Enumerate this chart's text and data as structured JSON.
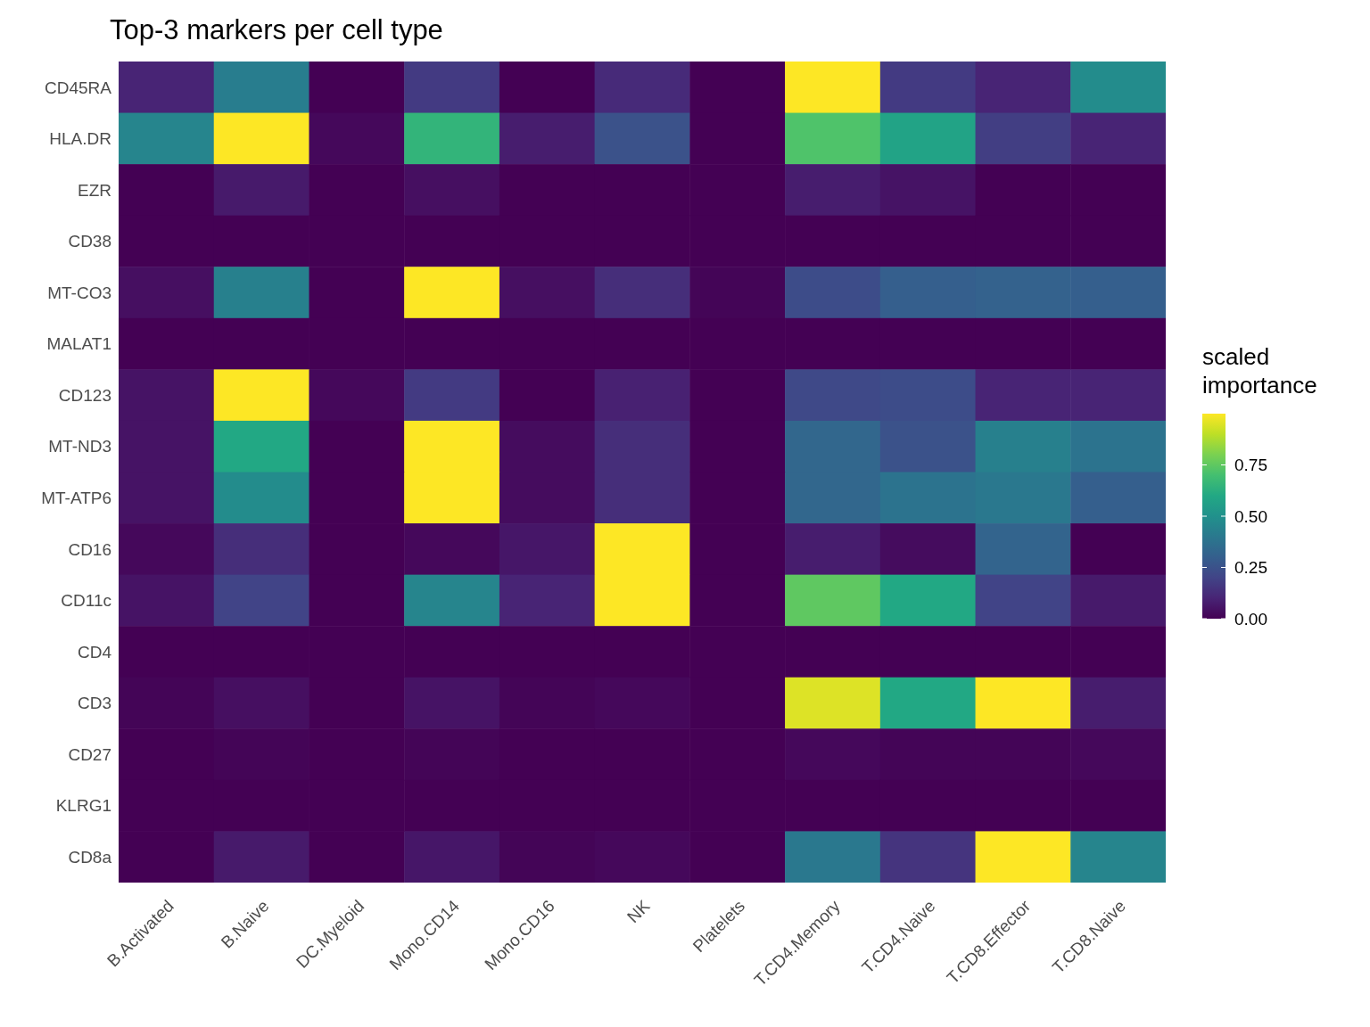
{
  "chart_data": {
    "type": "heatmap",
    "title": "Top-3 markers per cell type",
    "legend_title": "scaled importance",
    "categories": [
      "B.Activated",
      "B.Naive",
      "DC.Myeloid",
      "Mono.CD14",
      "Mono.CD16",
      "NK",
      "Platelets",
      "T.CD4.Memory",
      "T.CD4.Naive",
      "T.CD8.Effector",
      "T.CD8.Naive"
    ],
    "y_categories": [
      "CD45RA",
      "HLA.DR",
      "EZR",
      "CD38",
      "MT-CO3",
      "MALAT1",
      "CD123",
      "MT-ND3",
      "MT-ATP6",
      "CD16",
      "CD11c",
      "CD4",
      "CD3",
      "CD27",
      "KLRG1",
      "CD8a"
    ],
    "cells": [
      [
        0.1,
        0.42,
        0,
        0.17,
        0,
        0.12,
        0,
        1,
        0.17,
        0.1,
        0.48
      ],
      [
        0.45,
        1,
        0.02,
        0.65,
        0.08,
        0.25,
        0,
        0.72,
        0.58,
        0.18,
        0.1
      ],
      [
        0,
        0.07,
        0,
        0.04,
        0,
        0,
        0,
        0.08,
        0.05,
        0,
        0
      ],
      [
        0,
        0,
        0,
        0,
        0,
        0,
        0,
        0,
        0,
        0,
        0
      ],
      [
        0.04,
        0.43,
        0,
        1,
        0.04,
        0.13,
        0.01,
        0.23,
        0.3,
        0.31,
        0.3
      ],
      [
        0,
        0,
        0,
        0,
        0,
        0,
        0,
        0,
        0,
        0,
        0
      ],
      [
        0.05,
        1,
        0.02,
        0.17,
        0,
        0.09,
        0,
        0.22,
        0.23,
        0.1,
        0.1
      ],
      [
        0.05,
        0.6,
        0,
        1,
        0.03,
        0.13,
        0,
        0.33,
        0.25,
        0.43,
        0.38
      ],
      [
        0.05,
        0.48,
        0,
        1,
        0.03,
        0.13,
        0,
        0.33,
        0.38,
        0.4,
        0.3
      ],
      [
        0.02,
        0.13,
        0,
        0.02,
        0.06,
        1,
        0,
        0.08,
        0.03,
        0.32,
        0
      ],
      [
        0.05,
        0.2,
        0,
        0.45,
        0.1,
        1,
        0,
        0.75,
        0.6,
        0.2,
        0.07
      ],
      [
        0,
        0,
        0,
        0,
        0,
        0,
        0,
        0,
        0,
        0,
        0
      ],
      [
        0.01,
        0.04,
        0,
        0.05,
        0.01,
        0.02,
        0,
        0.95,
        0.6,
        1,
        0.08
      ],
      [
        0,
        0.01,
        0,
        0.01,
        0,
        0,
        0,
        0.02,
        0.01,
        0.01,
        0.02
      ],
      [
        0,
        0,
        0,
        0,
        0,
        0,
        0,
        0,
        0,
        0,
        0
      ],
      [
        0,
        0.07,
        0,
        0.06,
        0.01,
        0.02,
        0,
        0.4,
        0.15,
        1,
        0.45
      ]
    ],
    "clim": [
      0,
      1
    ],
    "cticks": [
      {
        "value": 0,
        "label": "0.00"
      },
      {
        "value": 0.25,
        "label": "0.25"
      },
      {
        "value": 0.5,
        "label": "0.50"
      },
      {
        "value": 0.75,
        "label": "0.75"
      }
    ]
  }
}
